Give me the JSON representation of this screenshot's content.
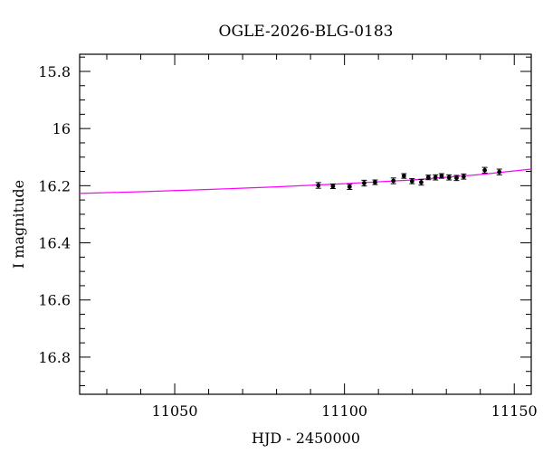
{
  "chart_data": {
    "type": "scatter",
    "title": "OGLE-2026-BLG-0183",
    "xlabel": "HJD - 2450000",
    "ylabel": "I magnitude",
    "xlim": [
      11022,
      11155
    ],
    "ylim": [
      16.93,
      15.74
    ],
    "y_inverted": true,
    "grid": false,
    "x_ticks": [
      11050,
      11100,
      11150
    ],
    "x_tick_labels": [
      "11050",
      "11100",
      "11150"
    ],
    "y_ticks": [
      15.8,
      16.0,
      16.2,
      16.4,
      16.6,
      16.8
    ],
    "y_tick_labels": [
      "15.8",
      "16",
      "16.2",
      "16.4",
      "16.6",
      "16.8"
    ],
    "points": [
      {
        "x": 11092.3,
        "y": 16.199,
        "err": 0.01
      },
      {
        "x": 11096.6,
        "y": 16.202,
        "err": 0.008
      },
      {
        "x": 11101.5,
        "y": 16.204,
        "err": 0.009
      },
      {
        "x": 11105.8,
        "y": 16.191,
        "err": 0.01
      },
      {
        "x": 11109.0,
        "y": 16.188,
        "err": 0.008
      },
      {
        "x": 11114.4,
        "y": 16.183,
        "err": 0.01
      },
      {
        "x": 11117.5,
        "y": 16.166,
        "err": 0.008
      },
      {
        "x": 11119.9,
        "y": 16.184,
        "err": 0.009
      },
      {
        "x": 11122.6,
        "y": 16.188,
        "err": 0.01
      },
      {
        "x": 11124.7,
        "y": 16.171,
        "err": 0.008
      },
      {
        "x": 11126.8,
        "y": 16.171,
        "err": 0.009
      },
      {
        "x": 11128.6,
        "y": 16.166,
        "err": 0.008
      },
      {
        "x": 11130.8,
        "y": 16.171,
        "err": 0.009
      },
      {
        "x": 11133.0,
        "y": 16.173,
        "err": 0.009
      },
      {
        "x": 11135.1,
        "y": 16.168,
        "err": 0.009
      },
      {
        "x": 11141.3,
        "y": 16.146,
        "err": 0.01
      },
      {
        "x": 11145.6,
        "y": 16.152,
        "err": 0.01
      }
    ],
    "model": {
      "color": "#ff00ff",
      "x": [
        11022,
        11040,
        11060,
        11080,
        11100,
        11120,
        11140,
        11155
      ],
      "y": [
        16.227,
        16.221,
        16.213,
        16.204,
        16.193,
        16.18,
        16.161,
        16.142
      ]
    },
    "colors": {
      "points": "#000000",
      "axes": "#000000",
      "model": "#ff00ff"
    }
  }
}
